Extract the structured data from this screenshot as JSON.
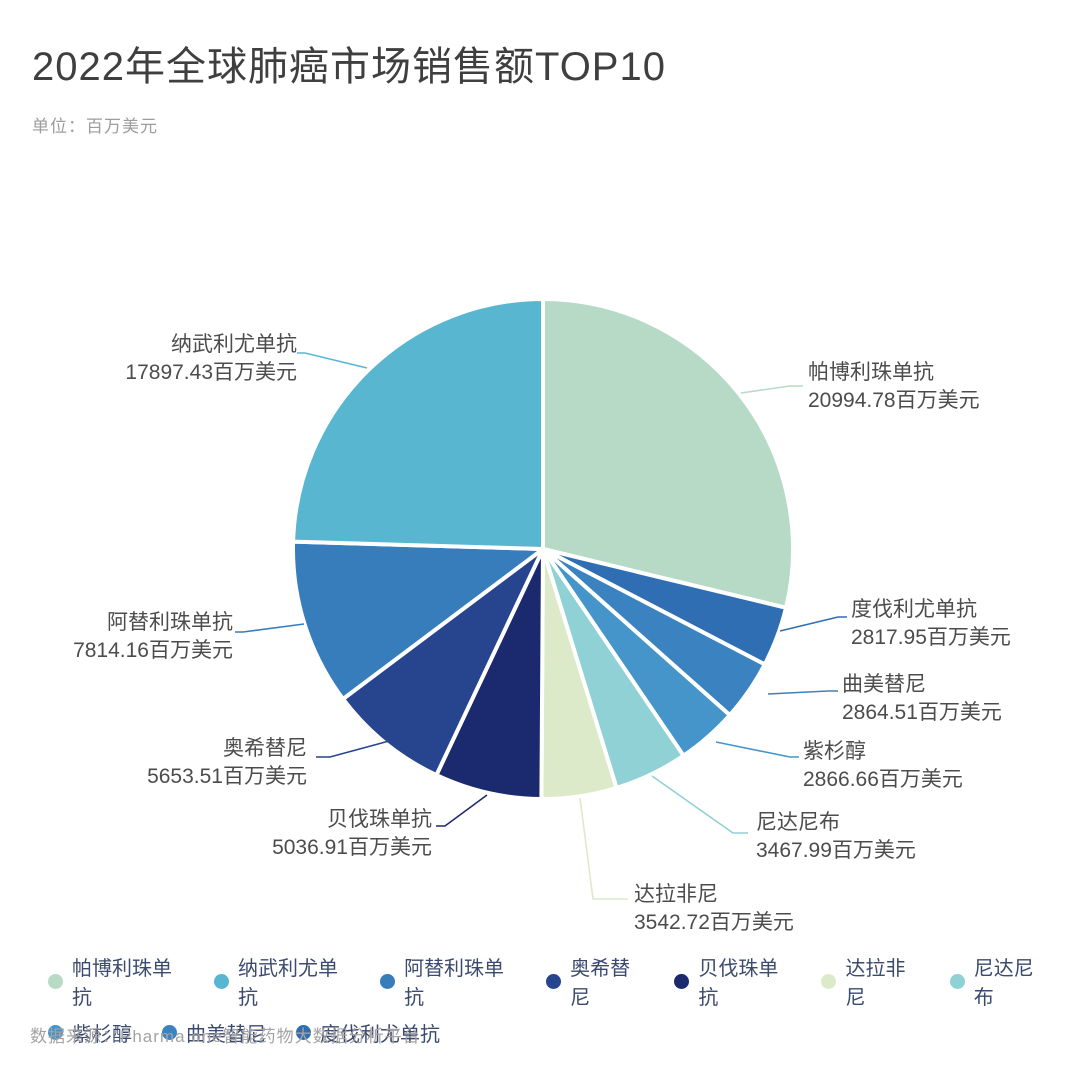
{
  "header": {
    "title": "2022年全球肺癌市场销售额TOP10",
    "unit_label": "单位：百万美元"
  },
  "footer": {
    "source": "数据来源：Pharma one智能药物大数据分析平台"
  },
  "chart_data": {
    "type": "pie",
    "title": "2022年全球肺癌市场销售额TOP10",
    "unit": "百万美元",
    "value_suffix": "百万美元",
    "legend_position": "bottom",
    "label_style": "outside-leader-lines",
    "series": [
      {
        "name": "帕博利珠单抗",
        "value": 20994.78,
        "color": "#b6dac6"
      },
      {
        "name": "度伐利尤单抗",
        "value": 2817.95,
        "color": "#2f6eb3"
      },
      {
        "name": "曲美替尼",
        "value": 2864.51,
        "color": "#3b82c0"
      },
      {
        "name": "紫杉醇",
        "value": 2866.66,
        "color": "#4595ca"
      },
      {
        "name": "尼达尼布",
        "value": 3467.99,
        "color": "#8fd1d5"
      },
      {
        "name": "达拉非尼",
        "value": 3542.72,
        "color": "#dceac9"
      },
      {
        "name": "贝伐珠单抗",
        "value": 5036.91,
        "color": "#1b2a6e"
      },
      {
        "name": "奥希替尼",
        "value": 5653.51,
        "color": "#27448f"
      },
      {
        "name": "阿替利珠单抗",
        "value": 7814.16,
        "color": "#377dbc"
      },
      {
        "name": "纳武利尤单抗",
        "value": 17897.43,
        "color": "#58b6d0"
      }
    ],
    "legend_order": [
      "帕博利珠单抗",
      "纳武利尤单抗",
      "阿替利珠单抗",
      "奥希替尼",
      "贝伐珠单抗",
      "达拉非尼",
      "尼达尼布",
      "紫杉醇",
      "曲美替尼",
      "度伐利尤单抗"
    ]
  }
}
